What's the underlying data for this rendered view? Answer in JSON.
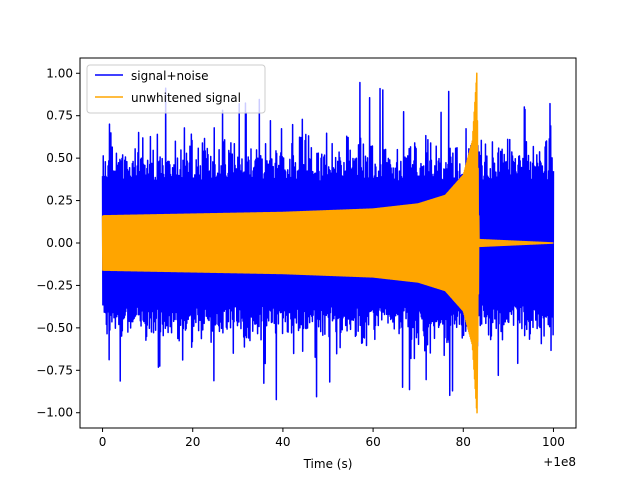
{
  "chart_data": {
    "type": "line",
    "xlabel": "Time (s)",
    "ylabel": "",
    "x_offset_label": "+1e8",
    "xlim": [
      -5,
      105
    ],
    "ylim": [
      -1.09,
      1.09
    ],
    "x_ticks": [
      0,
      20,
      40,
      60,
      80,
      100
    ],
    "x_tick_labels": [
      "0",
      "20",
      "40",
      "60",
      "80",
      "100"
    ],
    "y_ticks": [
      -1.0,
      -0.75,
      -0.5,
      -0.25,
      0.0,
      0.25,
      0.5,
      0.75,
      1.0
    ],
    "y_tick_labels": [
      "−1.00",
      "−0.75",
      "−0.50",
      "−0.25",
      "0.00",
      "0.25",
      "0.50",
      "0.75",
      "1.00"
    ],
    "grid": false,
    "legend": "top-left",
    "series": [
      {
        "name": "signal+noise",
        "color": "#0000ff",
        "t_start": 0,
        "t_end": 100,
        "typical_amplitude": 0.5,
        "peak_amplitude": 1.0
      },
      {
        "name": "unwhitened signal",
        "color": "#ffa500",
        "t_start": 0,
        "t_merger": 83,
        "t_end": 100,
        "envelope": [
          [
            0,
            0.16
          ],
          [
            20,
            0.17
          ],
          [
            40,
            0.18
          ],
          [
            60,
            0.2
          ],
          [
            70,
            0.23
          ],
          [
            76,
            0.28
          ],
          [
            80,
            0.4
          ],
          [
            82,
            0.6
          ],
          [
            83,
            1.0
          ],
          [
            83.5,
            0.02
          ],
          [
            100,
            0.0
          ]
        ]
      }
    ]
  }
}
